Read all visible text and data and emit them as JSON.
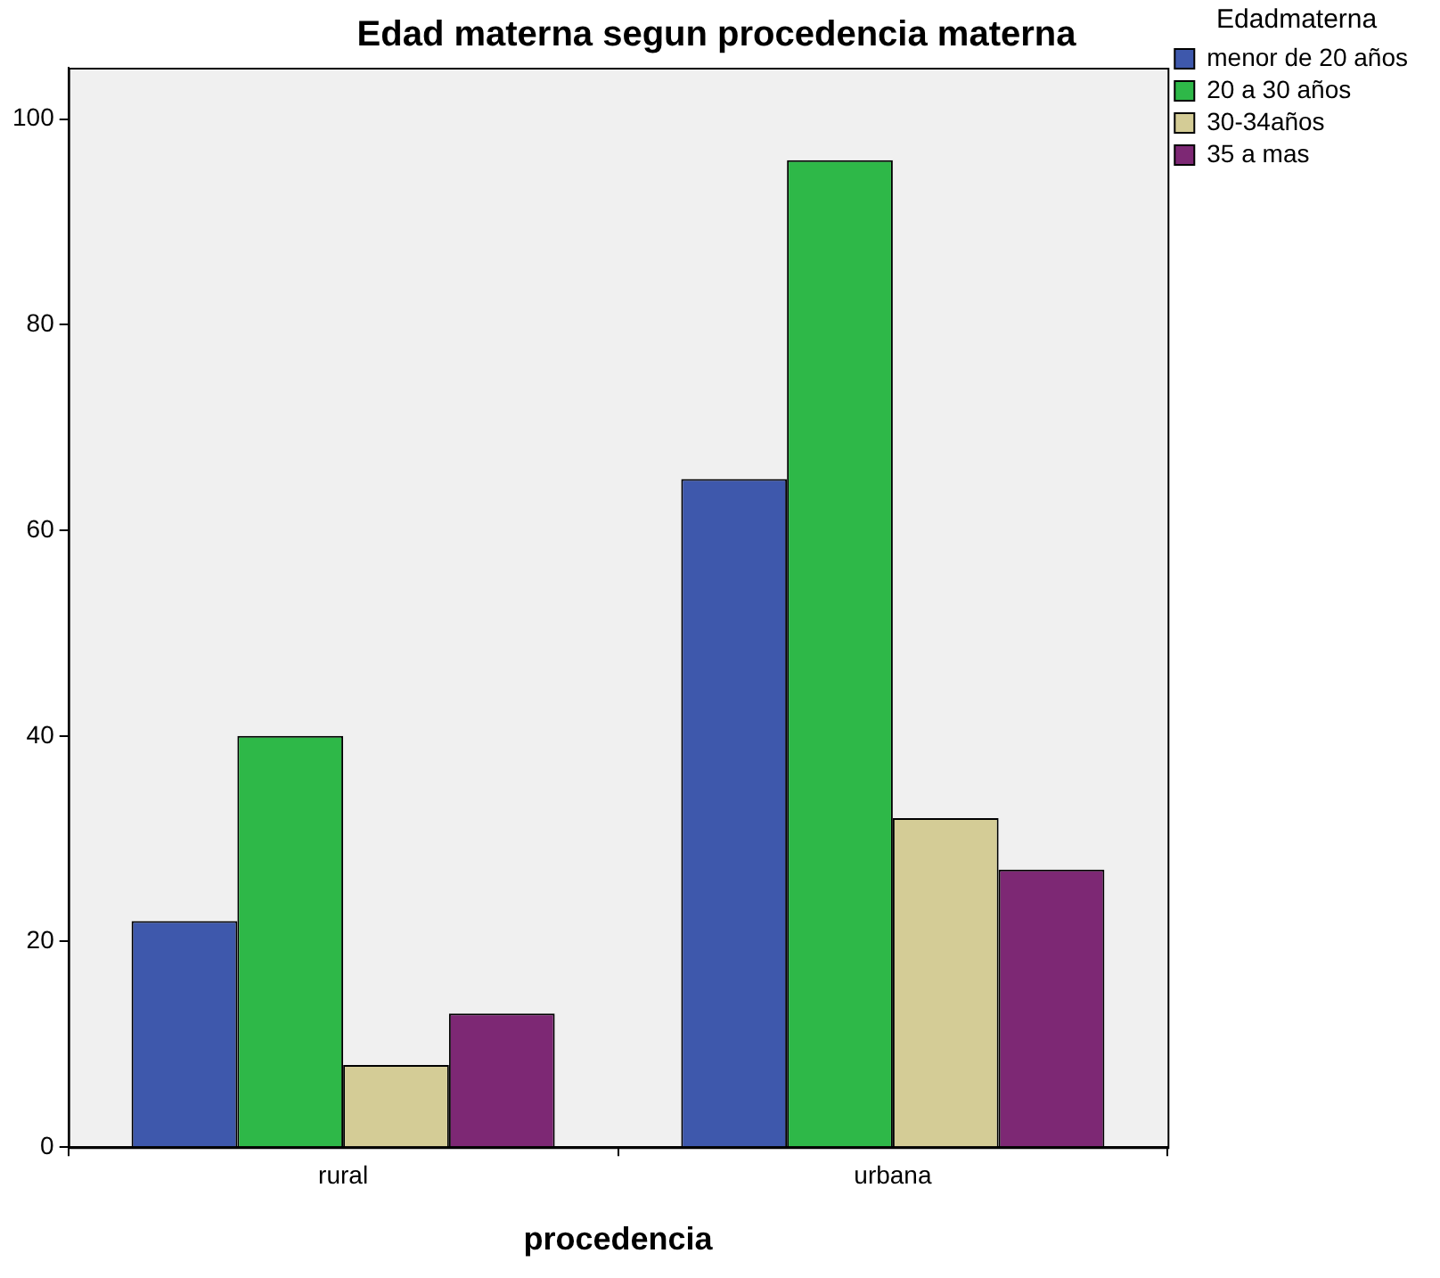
{
  "chart_data": {
    "type": "bar",
    "title": "Edad materna segun procedencia materna",
    "xlabel": "procedencia",
    "legend_title": "Edadmaterna",
    "categories": [
      "rural",
      "urbana"
    ],
    "series": [
      {
        "name": "menor de 20 años",
        "color": "#3e58ac",
        "values": [
          22,
          65
        ]
      },
      {
        "name": "20 a 30 años",
        "color": "#2eb848",
        "values": [
          40,
          96
        ]
      },
      {
        "name": "30-34años",
        "color": "#d4cc96",
        "values": [
          8,
          32
        ]
      },
      {
        "name": "35 a mas",
        "color": "#7d2874",
        "values": [
          13,
          27
        ]
      }
    ],
    "ylim": [
      0,
      105
    ],
    "yticks": [
      0,
      20,
      40,
      60,
      80,
      100
    ],
    "grid": false,
    "legend": "top right"
  }
}
